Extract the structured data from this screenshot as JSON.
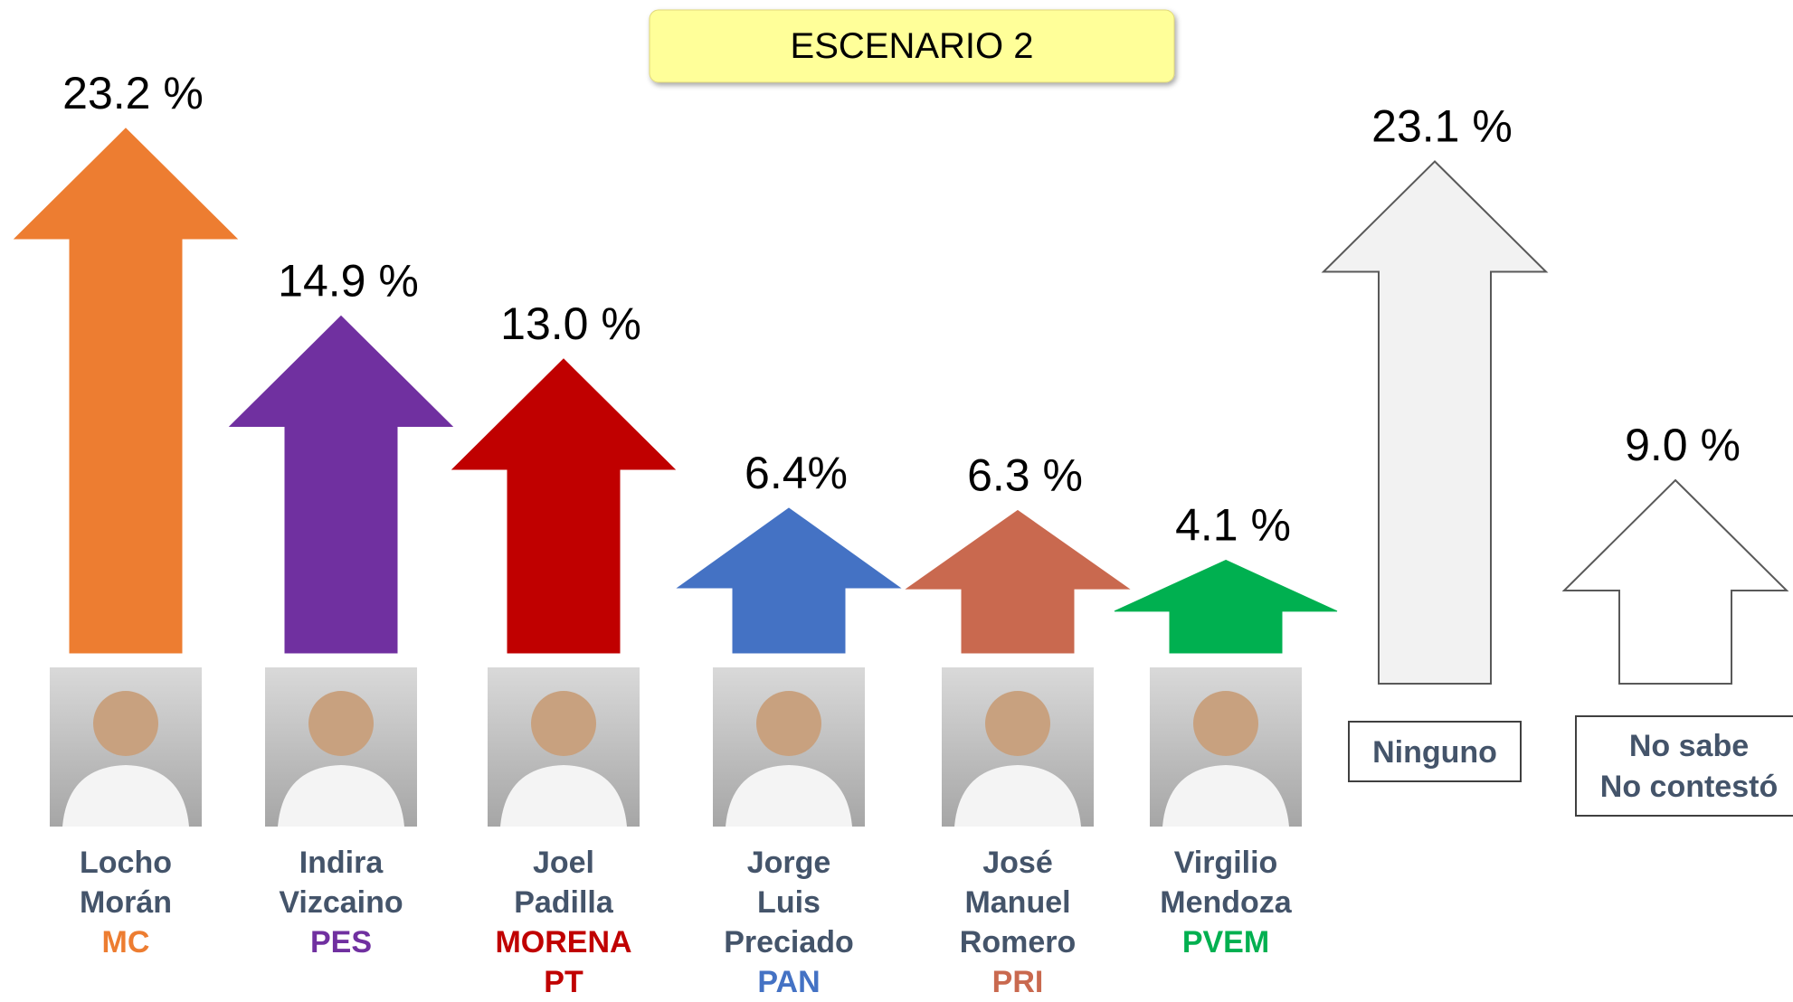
{
  "chart_data": {
    "type": "arrow",
    "title": "ESCENARIO 2",
    "categories": [
      "Locho\nMorán",
      "Indira\nVizcaino",
      "Joel\nPadilla",
      "Jorge\nLuis\nPreciado",
      "José\nManuel\nRomero",
      "Virgilio\nMendoza",
      "Ninguno",
      "No sabe\nNo contestó"
    ],
    "parties": [
      "MC",
      "PES",
      "MORENA\nPT",
      "PAN",
      "PRI",
      "PVEM",
      null,
      null
    ],
    "values": [
      23.2,
      14.9,
      13.0,
      6.4,
      6.3,
      4.1,
      23.1,
      9.0
    ],
    "value_labels": [
      "23.2 %",
      "14.9 %",
      "13.0 %",
      "6.4%",
      "6.3 %",
      "4.1 %",
      "23.1 %",
      "9.0 %"
    ],
    "colors": [
      "#ed7d31",
      "#7030a0",
      "#c00000",
      "#4472c4",
      "#c9694f",
      "#00b050",
      "#f2f2f2",
      "#ffffff"
    ]
  }
}
